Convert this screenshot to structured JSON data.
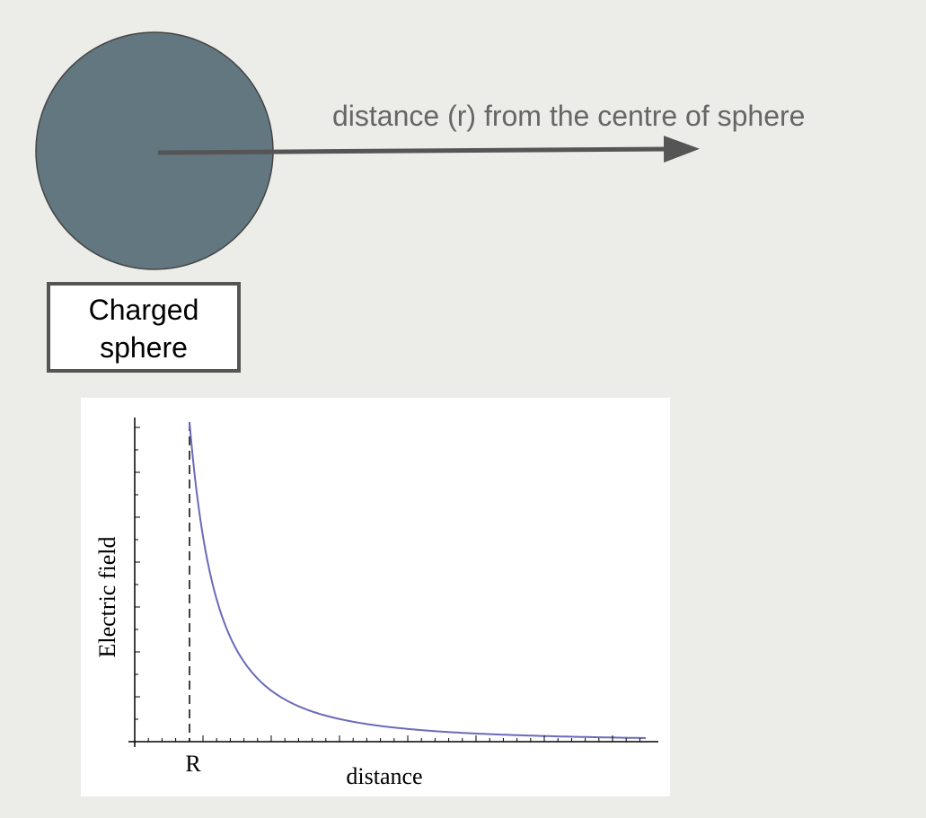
{
  "diagram": {
    "arrow_label": "distance (r) from the centre of sphere",
    "sphere_label": [
      "Charged",
      "sphere"
    ]
  },
  "graph": {
    "y_label": "Electric field",
    "x_label": "distance",
    "marker_label": "R"
  }
}
